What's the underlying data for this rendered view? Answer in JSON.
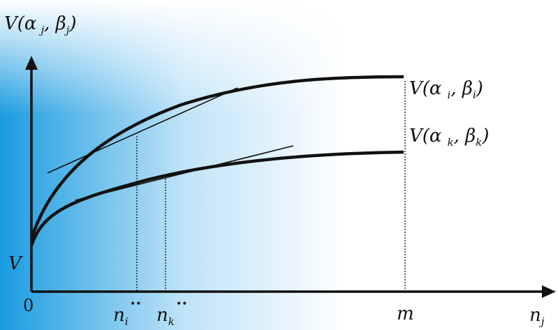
{
  "colors": {
    "background_gradient_start": "#1a9be0",
    "background_gradient_mid": "#bfe3f7",
    "background_gradient_end": "#ffffff",
    "ink": "#111111"
  },
  "y_axis_label": {
    "func": "V(",
    "alpha": "α",
    "alpha_sub": "j",
    "beta": "β",
    "beta_sub": "j",
    "close": ")"
  },
  "x_axis_label": {
    "var": "n",
    "sub": "j"
  },
  "origin_label": "0",
  "v_intercept_label": "V",
  "curve_upper_label": {
    "func": "V(",
    "alpha": "α",
    "alpha_sub": "i",
    "beta": "β",
    "beta_sub": "i",
    "close": ")"
  },
  "curve_lower_label": {
    "func": "V(",
    "alpha": "α",
    "alpha_sub": "k",
    "beta": "β",
    "beta_sub": "k",
    "close": ")"
  },
  "tick_ni": {
    "var": "n",
    "sub": "i",
    "marks": "••"
  },
  "tick_nk": {
    "var": "n",
    "sub": "k",
    "marks": "••"
  },
  "tick_m": "m"
}
